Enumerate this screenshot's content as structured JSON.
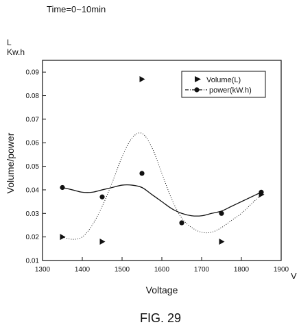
{
  "header": {
    "time_label": "Time=0~10min"
  },
  "figure_caption": "FIG. 29",
  "chart_data": {
    "type": "scatter",
    "y_unit_labels": [
      "L",
      "Kw.h"
    ],
    "xlabel": "Voltage",
    "x_unit": "V",
    "ylabel": "Volume/power",
    "xlim": [
      1300,
      1900
    ],
    "ylim": [
      0.01,
      0.095
    ],
    "x_ticks": [
      1300,
      1400,
      1500,
      1600,
      1700,
      1800,
      1900
    ],
    "x_tick_labels": [
      "1300",
      "1400",
      "1500",
      "1600",
      "1700",
      "1800",
      "1900"
    ],
    "y_ticks": [
      0.01,
      0.02,
      0.03,
      0.04,
      0.05,
      0.06,
      0.07,
      0.08,
      0.09
    ],
    "y_tick_labels": [
      "0.01",
      "0.02",
      "0.03",
      "0.04",
      "0.05",
      "0.06",
      "0.07",
      "0.08",
      "0.09"
    ],
    "grid": false,
    "legend_position": "top-right",
    "series": [
      {
        "name": "Volume(L)",
        "marker": "triangle-right",
        "line_style": "dotted",
        "color": "#111111",
        "x": [
          1350,
          1450,
          1550,
          1650,
          1750,
          1850
        ],
        "y": [
          0.02,
          0.018,
          0.087,
          null,
          0.018,
          0.038
        ],
        "fit_x": [
          1350,
          1375,
          1400,
          1425,
          1450,
          1475,
          1500,
          1525,
          1550,
          1575,
          1600,
          1625,
          1650,
          1675,
          1700,
          1725,
          1750,
          1775,
          1800,
          1825,
          1850
        ],
        "fit_y": [
          0.02,
          0.019,
          0.02,
          0.025,
          0.033,
          0.043,
          0.054,
          0.062,
          0.064,
          0.058,
          0.047,
          0.036,
          0.028,
          0.024,
          0.022,
          0.022,
          0.024,
          0.027,
          0.03,
          0.034,
          0.038
        ]
      },
      {
        "name": "power(kW.h)",
        "marker": "circle",
        "line_style": "solid",
        "color": "#111111",
        "x": [
          1350,
          1450,
          1550,
          1650,
          1750,
          1850
        ],
        "y": [
          0.041,
          0.037,
          0.047,
          0.026,
          0.03,
          0.039
        ],
        "fit_x": [
          1350,
          1375,
          1400,
          1425,
          1450,
          1475,
          1500,
          1525,
          1550,
          1575,
          1600,
          1625,
          1650,
          1675,
          1700,
          1725,
          1750,
          1775,
          1800,
          1825,
          1850
        ],
        "fit_y": [
          0.041,
          0.04,
          0.039,
          0.039,
          0.04,
          0.041,
          0.042,
          0.042,
          0.041,
          0.038,
          0.035,
          0.032,
          0.03,
          0.029,
          0.029,
          0.03,
          0.031,
          0.033,
          0.035,
          0.037,
          0.039
        ]
      }
    ]
  }
}
